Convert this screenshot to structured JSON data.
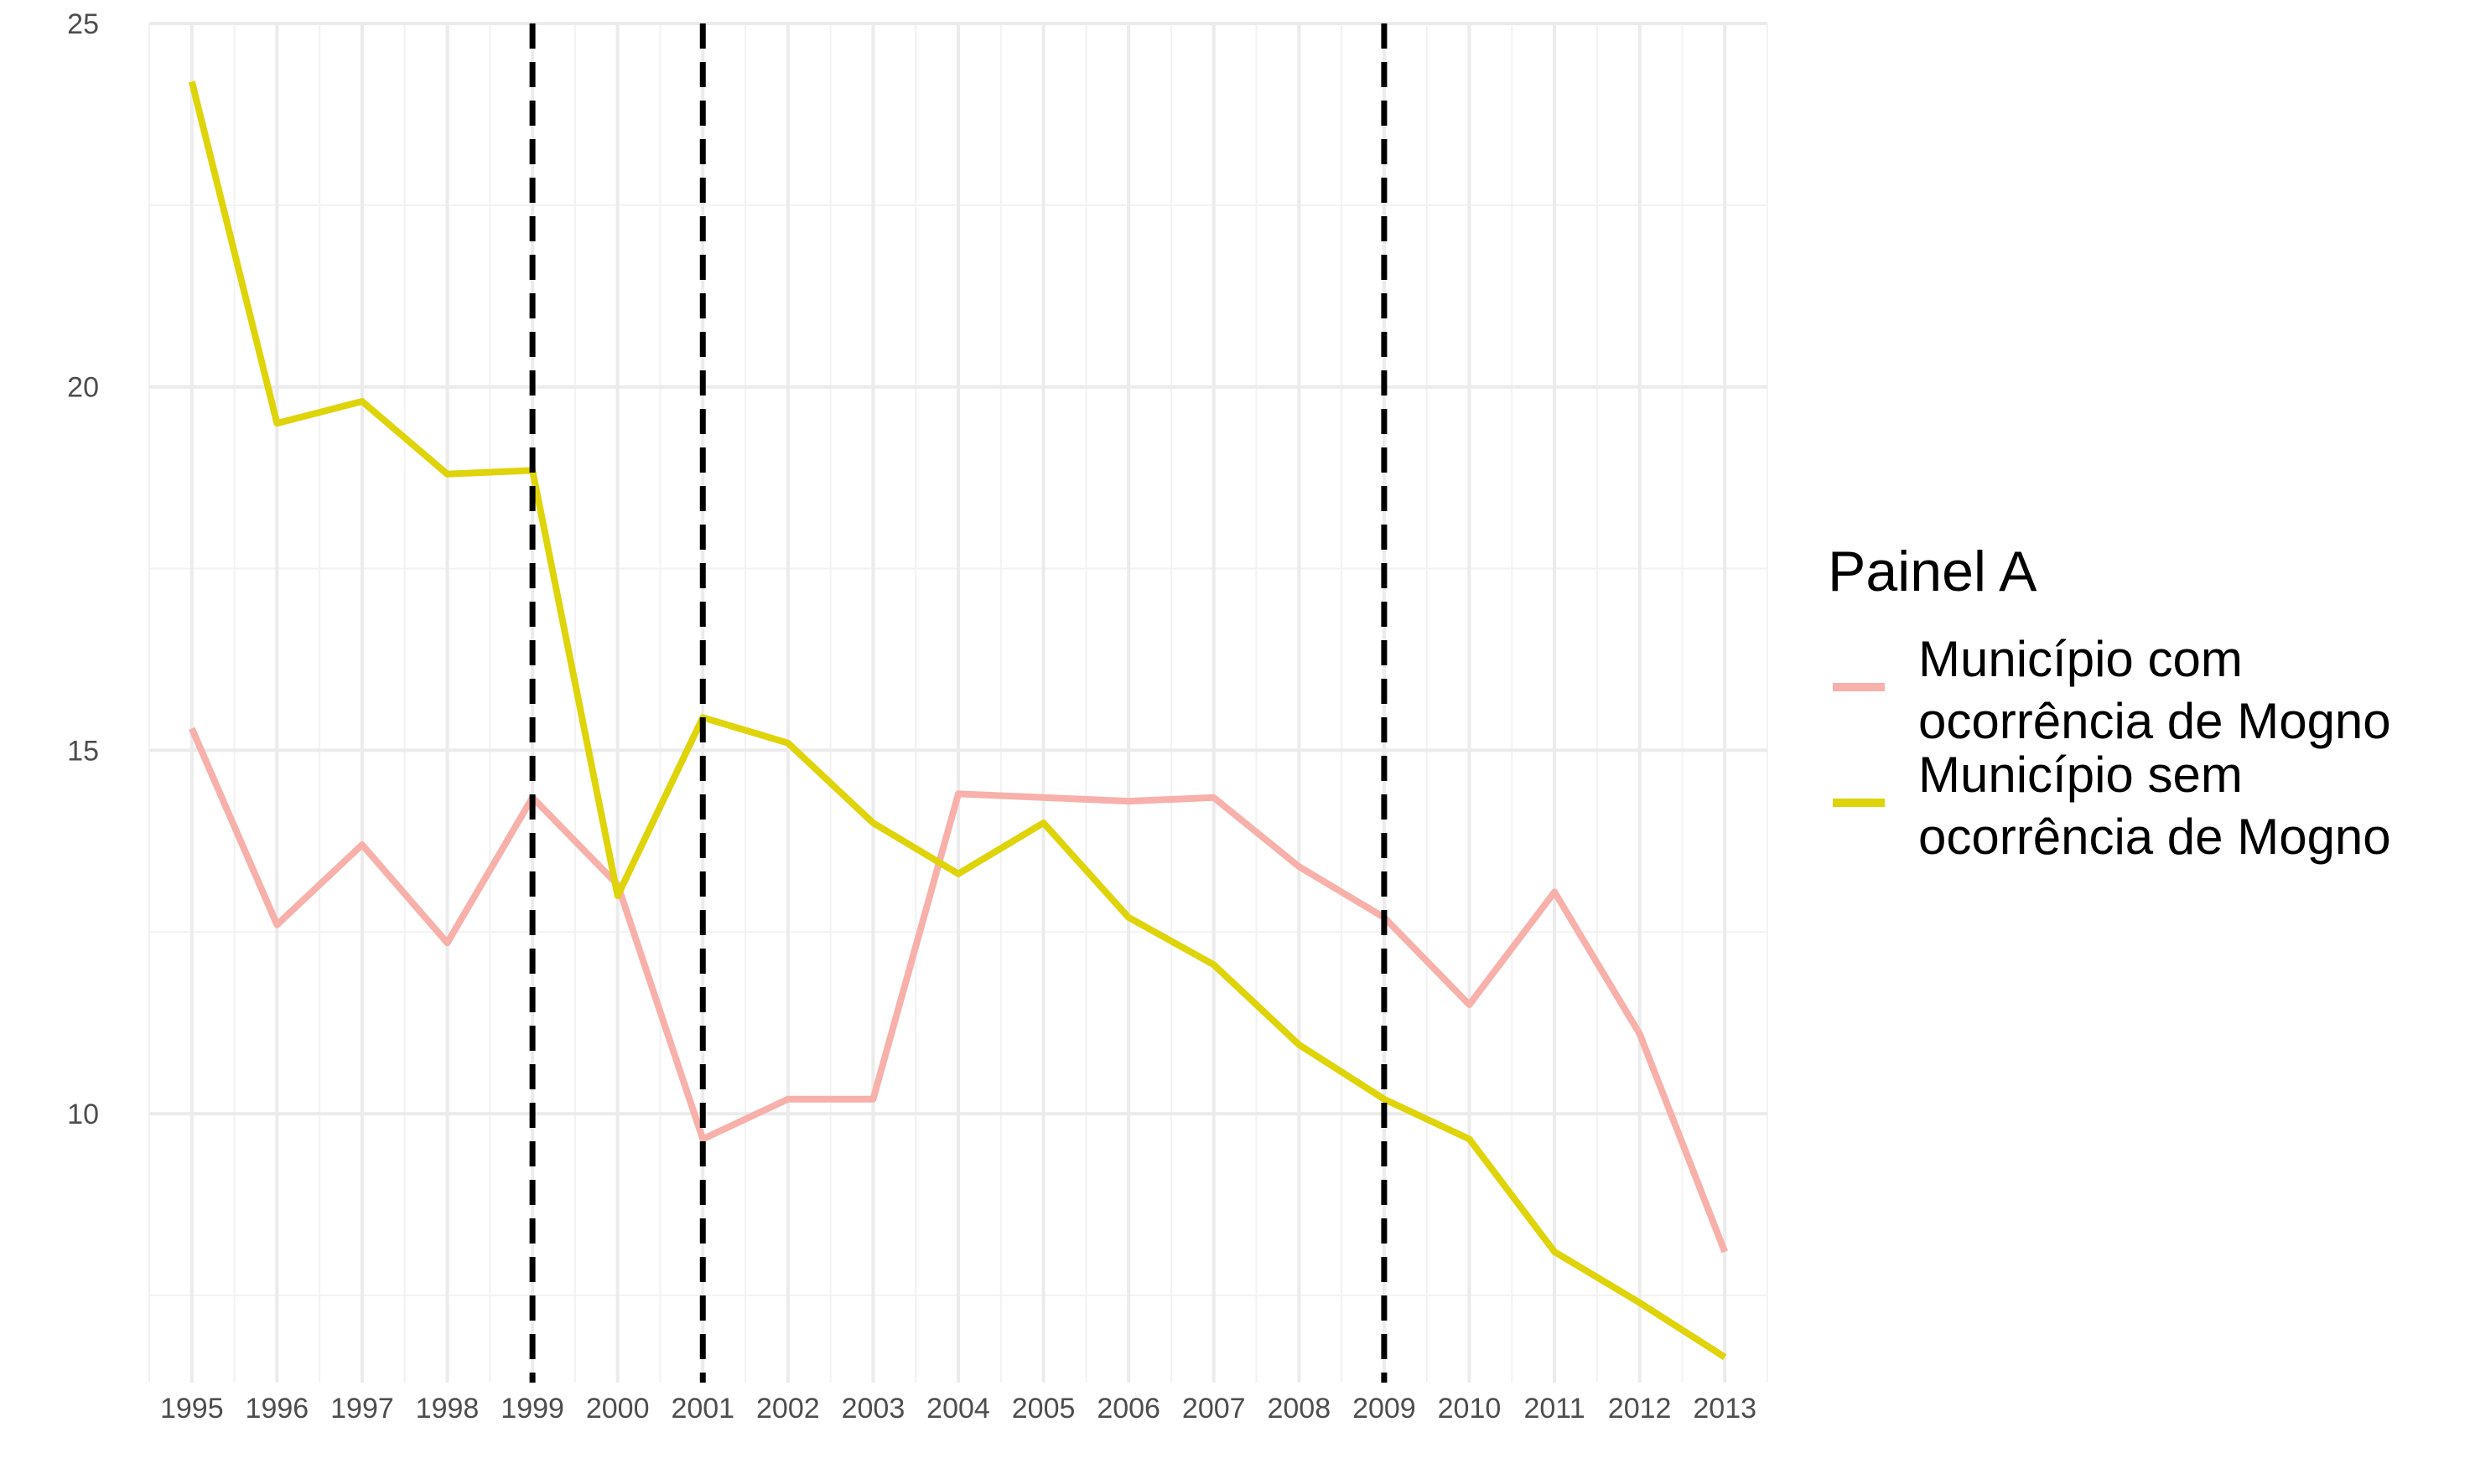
{
  "chart_data": {
    "type": "line",
    "title": "",
    "xlabel": "",
    "ylabel": "",
    "x": [
      1995,
      1996,
      1997,
      1998,
      1999,
      2000,
      2001,
      2002,
      2003,
      2004,
      2005,
      2006,
      2007,
      2008,
      2009,
      2010,
      2011,
      2012,
      2013
    ],
    "x_tick_labels": [
      "1995",
      "1996",
      "1997",
      "1998",
      "1999",
      "2000",
      "2001",
      "2002",
      "2003",
      "2004",
      "2005",
      "2006",
      "2007",
      "2008",
      "2009",
      "2010",
      "2011",
      "2012",
      "2013"
    ],
    "y_tick_labels": [
      "10",
      "15",
      "20",
      "25"
    ],
    "y_ticks": [
      10,
      15,
      20,
      25
    ],
    "ylim": [
      6.3,
      25
    ],
    "xlim": [
      1994.5,
      2013.5
    ],
    "grid": true,
    "vlines": [
      1999,
      2001,
      2009
    ],
    "legend": {
      "title": "Painel A",
      "position": "right",
      "entries": [
        {
          "lines": [
            "Município com",
            "ocorrência de Mogno"
          ],
          "color": "#f8b0aa"
        },
        {
          "lines": [
            "Município sem",
            "ocorrência de Mogno"
          ],
          "color": "#dfd30a"
        }
      ]
    },
    "series": [
      {
        "name": "Município com ocorrência de Mogno",
        "color": "#f8b0aa",
        "values": [
          15.3,
          12.6,
          13.7,
          12.35,
          14.35,
          13.15,
          9.65,
          10.2,
          10.2,
          14.4,
          14.35,
          14.3,
          14.35,
          13.4,
          12.7,
          11.5,
          13.05,
          11.1,
          8.1
        ]
      },
      {
        "name": "Município sem ocorrência de Mogno",
        "color": "#dfd30a",
        "values": [
          24.2,
          19.5,
          19.8,
          18.8,
          18.85,
          13.0,
          15.45,
          15.1,
          14.0,
          13.3,
          14.0,
          12.7,
          12.05,
          10.95,
          10.2,
          9.65,
          8.1,
          7.4,
          6.65
        ]
      }
    ]
  }
}
